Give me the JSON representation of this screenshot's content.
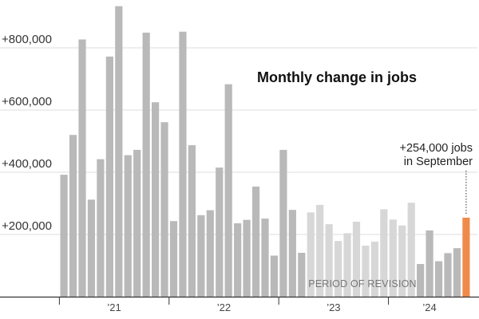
{
  "chart_data": {
    "type": "bar",
    "title": "Monthly change in jobs",
    "xlabel": "",
    "ylabel": "",
    "ylim": [
      -20000,
      950000
    ],
    "yticks": [
      200000,
      400000,
      600000,
      800000
    ],
    "ytick_labels": [
      "+200,000",
      "+400,000",
      "+600,000",
      "+800,000"
    ],
    "grid": true,
    "x_groups": [
      "’21",
      "’22",
      "’23",
      "’24"
    ],
    "revision_label": "PERIOD OF REVISION",
    "highlight_annotation": [
      "+254,000 jobs",
      "in September"
    ],
    "colors": {
      "bar": "#b9b9b9",
      "revision_bar": "#d7d7d7",
      "highlight": "#f08a4b",
      "grid": "#dddddd",
      "axis": "#333333"
    },
    "categories": [
      "Jan 2021",
      "Feb 2021",
      "Mar 2021",
      "Apr 2021",
      "May 2021",
      "Jun 2021",
      "Jul 2021",
      "Aug 2021",
      "Sep 2021",
      "Oct 2021",
      "Nov 2021",
      "Dec 2021",
      "Jan 2022",
      "Feb 2022",
      "Mar 2022",
      "Apr 2022",
      "May 2022",
      "Jun 2022",
      "Jul 2022",
      "Aug 2022",
      "Sep 2022",
      "Oct 2022",
      "Nov 2022",
      "Dec 2022",
      "Jan 2023",
      "Feb 2023",
      "Mar 2023",
      "Apr 2023",
      "May 2023",
      "Jun 2023",
      "Jul 2023",
      "Aug 2023",
      "Sep 2023",
      "Oct 2023",
      "Nov 2023",
      "Dec 2023",
      "Jan 2024",
      "Feb 2024",
      "Mar 2024",
      "Apr 2024",
      "May 2024",
      "Jun 2024",
      "Jul 2024",
      "Aug 2024",
      "Sep 2024"
    ],
    "values": [
      392000,
      520000,
      827000,
      312000,
      442000,
      772000,
      934000,
      455000,
      472000,
      849000,
      625000,
      561000,
      243000,
      852000,
      487000,
      262000,
      278000,
      415000,
      683000,
      236000,
      247000,
      354000,
      251000,
      132000,
      472000,
      279000,
      141000,
      271000,
      295000,
      233000,
      179000,
      204000,
      241000,
      164000,
      177000,
      281000,
      248000,
      229000,
      302000,
      105000,
      213000,
      114000,
      140000,
      156000,
      254000
    ],
    "revision_start": "Apr 2023",
    "revision_end": "Mar 2024",
    "highlight": "Sep 2024"
  }
}
